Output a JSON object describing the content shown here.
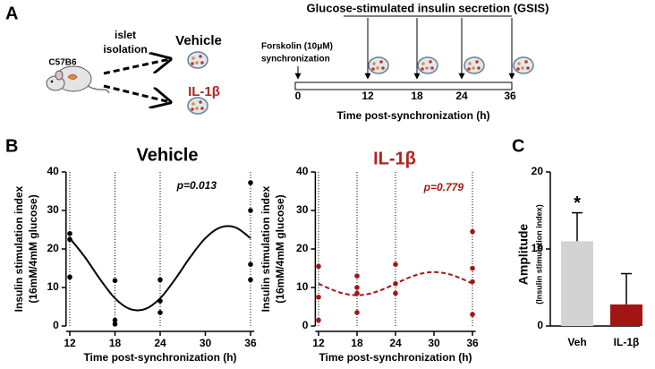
{
  "panel_labels": [
    "A",
    "B",
    "C"
  ],
  "diagram": {
    "mouse_label": "C57B6",
    "arrow_label": [
      "islet",
      "isolation"
    ],
    "vehicle": "Vehicle",
    "treatment": "IL-1β",
    "title": "Glucose-stimulated insulin secretion (GSIS)",
    "sync_label": [
      "Forskolin (10μM)",
      "synchronization"
    ],
    "timeline_ticks": [
      0,
      12,
      18,
      24,
      36
    ],
    "timeline_label": "Time post-synchronization (h)"
  },
  "chart_data": [
    {
      "type": "scatter",
      "title": "Vehicle",
      "title_color": "#000000",
      "annotation": "p=0.013",
      "x_label": "Time post-synchronization (h)",
      "y_label": [
        "Insulin stimulation index",
        "(16mM/4mM glucose)"
      ],
      "xlim": [
        11.5,
        36.5
      ],
      "xticks": [
        12,
        18,
        24,
        30,
        36
      ],
      "ylim": [
        0,
        40
      ],
      "yticks": [
        0,
        10,
        20,
        30,
        40
      ],
      "vlines": [
        12,
        18,
        24,
        36
      ],
      "points": {
        "color": "#000000",
        "x": [
          12,
          12,
          12,
          18,
          18,
          18,
          24,
          24,
          24,
          36,
          36,
          36,
          36
        ],
        "values": [
          24,
          22.5,
          12.7,
          11.8,
          1.5,
          0.5,
          12,
          6.5,
          3.5,
          37.2,
          30,
          16,
          12
        ]
      },
      "fit": {
        "color": "#000000",
        "dashed": false,
        "x": [
          12,
          14,
          16,
          18,
          20,
          22,
          24,
          26,
          28,
          30,
          32,
          34,
          36
        ],
        "values": [
          22.8,
          17.9,
          12.2,
          7.2,
          4.4,
          4.4,
          7.2,
          12.2,
          17.9,
          22.8,
          25.6,
          25.6,
          22.8
        ]
      }
    },
    {
      "type": "scatter",
      "title": "IL-1β",
      "title_color": "#b22222",
      "annotation": "p=0.779",
      "x_label": "Time post-synchronization (h)",
      "y_label": [
        "Insulin stimulation index",
        "(16mM/4mM glucose)"
      ],
      "xlim": [
        11.5,
        36.5
      ],
      "xticks": [
        12,
        18,
        24,
        30,
        36
      ],
      "ylim": [
        0,
        40
      ],
      "yticks": [
        0,
        10,
        20,
        30,
        40
      ],
      "vlines": [
        12,
        18,
        24,
        36
      ],
      "points": {
        "color": "#a31515",
        "x": [
          12,
          12,
          12,
          18,
          18,
          18,
          18,
          24,
          24,
          24,
          36,
          36,
          36,
          36
        ],
        "values": [
          15.5,
          7.5,
          1.5,
          13,
          10,
          8.5,
          3.5,
          16,
          11,
          8.5,
          24.5,
          15,
          11.5,
          3
        ]
      },
      "fit": {
        "color": "#a31515",
        "dashed": true,
        "x": [
          12,
          14,
          16,
          18,
          20,
          22,
          24,
          26,
          28,
          30,
          32,
          34,
          36
        ],
        "values": [
          11,
          9.5,
          8.4,
          8,
          8.4,
          9.5,
          11,
          12.5,
          13.6,
          14,
          13.6,
          12.5,
          11
        ]
      }
    },
    {
      "type": "bar",
      "categories": [
        "Veh",
        "IL-1β"
      ],
      "values": [
        11,
        2.8
      ],
      "errors": [
        3.7,
        4
      ],
      "colors": [
        "#d3d3d3",
        "#a31515"
      ],
      "ylim": [
        0,
        20
      ],
      "yticks": [
        0,
        10,
        20
      ],
      "y_label": [
        "Amplitude",
        "(Insulin stimulation index)"
      ],
      "annotation": "*",
      "annotation_category": "Veh"
    }
  ]
}
